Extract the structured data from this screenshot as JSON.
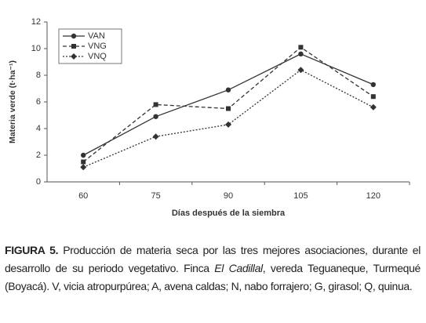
{
  "chart_data": {
    "type": "line",
    "y_label": "Materia verde (t·ha⁻¹)",
    "x_label": "Días después de la siembra",
    "categories": [
      "60",
      "75",
      "90",
      "105",
      "120"
    ],
    "series": [
      {
        "name": "VAN",
        "color": "#333333",
        "marker": "circle",
        "dash": "solid",
        "values": [
          2.0,
          4.9,
          6.9,
          9.6,
          7.3
        ]
      },
      {
        "name": "VNG",
        "color": "#333333",
        "marker": "square",
        "dash": "dashed",
        "values": [
          1.5,
          5.8,
          5.5,
          10.1,
          6.4
        ]
      },
      {
        "name": "VNQ",
        "color": "#333333",
        "marker": "diamond",
        "dash": "dotted",
        "values": [
          1.1,
          3.4,
          4.3,
          8.4,
          5.6
        ]
      }
    ],
    "ylim": [
      0,
      12
    ],
    "yticks": [
      0,
      2,
      4,
      6,
      8,
      10,
      12
    ],
    "legend": "upper left"
  },
  "caption": {
    "label": "FIGURA 5.",
    "text1": " Producción de materia seca por las tres mejores asociaciones, durante el desarrollo de su periodo vegetativo. Finca ",
    "italic": "El Cadillal",
    "text2": ", vereda Teguaneque, Turmequé (Boyacá). V, vicia atropurpúrea; A, avena caldas; N, nabo forrajero; G, girasol; Q, quinua."
  }
}
